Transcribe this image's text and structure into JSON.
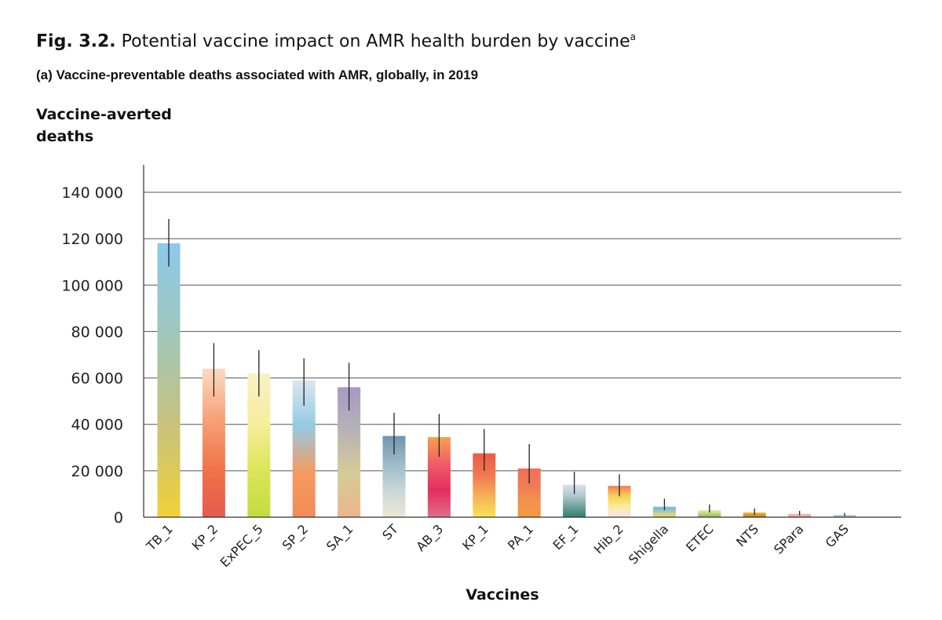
{
  "figure": {
    "label": "Fig. 3.2.",
    "title": "Potential vaccine impact on AMR health burden by vaccine",
    "title_superscript": "a",
    "subtitle": "(a) Vaccine-preventable deaths associated with AMR, globally, in 2019"
  },
  "chart_data": {
    "type": "bar",
    "title": "Potential vaccine impact on AMR health burden by vaccine",
    "subtitle": "(a) Vaccine-preventable deaths associated with AMR, globally, in 2019",
    "ylabel": "Vaccine-averted deaths",
    "xlabel": "Vaccines",
    "ylim": [
      0,
      150000
    ],
    "yticks": [
      0,
      20000,
      40000,
      60000,
      80000,
      100000,
      120000,
      140000
    ],
    "ytick_labels": [
      "0",
      "20 000",
      "40 000",
      "60 000",
      "80 000",
      "100 000",
      "120 000",
      "140 000"
    ],
    "grid": true,
    "categories": [
      "TB_1",
      "KP_2",
      "ExPEC_5",
      "SP_2",
      "SA_1",
      "ST",
      "AB_3",
      "KP_1",
      "PA_1",
      "EF_1",
      "Hib_2",
      "Shigella",
      "ETEC",
      "NTS",
      "SPara",
      "GAS"
    ],
    "values": [
      118000,
      64000,
      62000,
      59000,
      56000,
      35000,
      34500,
      27500,
      21000,
      14000,
      13500,
      4500,
      3000,
      2000,
      1500,
      1000
    ],
    "error_low": [
      108000,
      52000,
      52000,
      48000,
      46000,
      27000,
      26000,
      20000,
      14500,
      10000,
      9000,
      3000,
      2000,
      1000,
      800,
      500
    ],
    "error_high": [
      128500,
      75000,
      72000,
      68500,
      66500,
      45000,
      44500,
      38000,
      31500,
      19500,
      18500,
      8000,
      5500,
      3800,
      2700,
      1800
    ],
    "bar_gradients": [
      [
        "#8cc9ec",
        "#9fc6ba",
        "#c9c27c",
        "#f0d136"
      ],
      [
        "#f9dcc1",
        "#f7a27a",
        "#ef7547",
        "#e55a4f"
      ],
      [
        "#f8f1c6",
        "#f6eea0",
        "#dde55a",
        "#c3dc3e"
      ],
      [
        "#dce6ef",
        "#93cbe4",
        "#f59b63",
        "#f28c55"
      ],
      [
        "#a898c6",
        "#b6b3b5",
        "#d6cc96",
        "#eab58c"
      ],
      [
        "#6f95b0",
        "#9eb9c8",
        "#c7d7d9",
        "#eee7d5"
      ],
      [
        "#f7a24e",
        "#ef5c66",
        "#e22f60",
        "#e06d89"
      ],
      [
        "#ec5b47",
        "#f07752",
        "#f5b156",
        "#f7e556"
      ],
      [
        "#ef7058",
        "#f07a55",
        "#f3914f",
        "#f4973f"
      ],
      [
        "#d7e1e9",
        "#b1c9d1",
        "#70a39d",
        "#2f7f6f"
      ],
      [
        "#f27c5e",
        "#f8d250",
        "#f8ed9d",
        "#fbe2ec"
      ],
      [
        "#6bbbe0",
        "#8dc3c8",
        "#d7d08c",
        "#f0d146"
      ],
      [
        "#e4e79e",
        "#d6dd88",
        "#a8c875",
        "#91c073"
      ],
      [
        "#f4b341",
        "#e6a42f",
        "#c99325",
        "#b08325"
      ],
      [
        "#f7c3b6",
        "#f5b4a8",
        "#f3a7a0",
        "#f19d99"
      ],
      [
        "#c5d8e6",
        "#b7cad9",
        "#a8bccc",
        "#9fb3c4"
      ]
    ],
    "colors": {
      "axis": "#333333",
      "grid": "#555555",
      "error_bar": "#222222"
    }
  }
}
